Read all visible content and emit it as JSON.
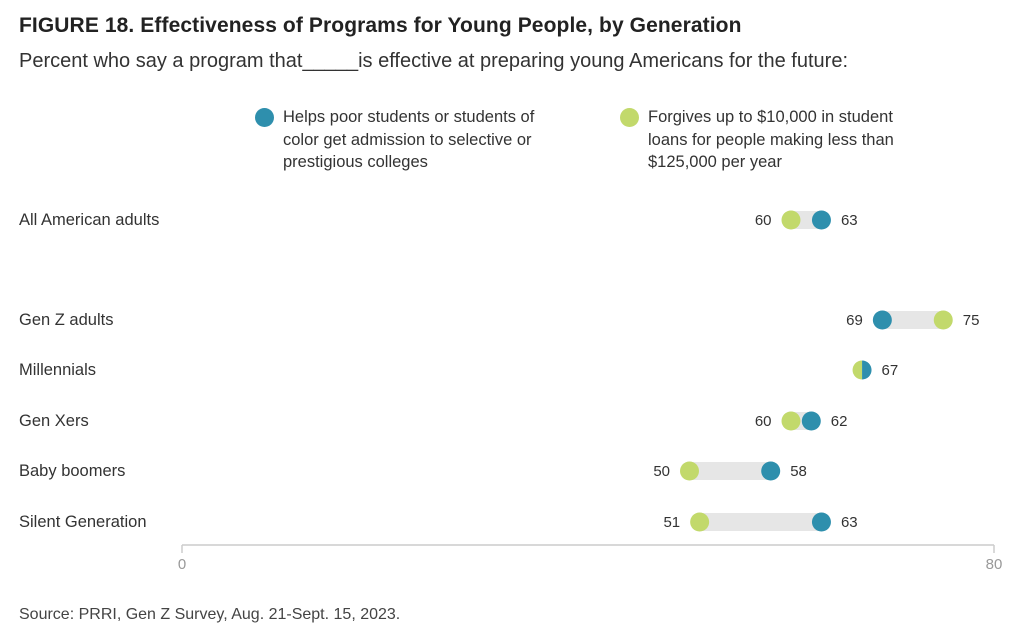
{
  "title": "FIGURE 18. Effectiveness of Programs for Young People, by Generation",
  "subtitle": "Percent who say a program that_____is effective at preparing young Americans for the future:",
  "source": "Source: PRRI, Gen Z Survey, Aug. 21-Sept. 15, 2023.",
  "colors": {
    "series_blue": "#2e8fad",
    "series_green": "#c2d96b",
    "connector": "#e6e6e6",
    "axis": "#cccccc"
  },
  "legend": {
    "position": "top",
    "items": [
      {
        "color": "#2e8fad",
        "label": "Helps poor students or students of\ncolor get admission to selective or\nprestigious colleges"
      },
      {
        "color": "#c2d96b",
        "label": "Forgives up to $10,000 in student\nloans for people making less than\n$125,000 per year"
      }
    ]
  },
  "chart_data": {
    "type": "scatter",
    "subtype": "dumbbell",
    "xlim": [
      0,
      80
    ],
    "x_ticks": [
      "0",
      "80"
    ],
    "grid": false,
    "categories": [
      "All American adults",
      "Gen Z adults",
      "Millennials",
      "Gen Xers",
      "Baby boomers",
      "Silent Generation"
    ],
    "series": [
      {
        "name": "Helps poor students or students of color get admission to selective or prestigious colleges",
        "color": "#2e8fad",
        "values": [
          63,
          69,
          67,
          62,
          58,
          63
        ]
      },
      {
        "name": "Forgives up to $10,000 in student loans for people making less than $125,000 per year",
        "color": "#c2d96b",
        "values": [
          60,
          75,
          67,
          60,
          50,
          51
        ]
      }
    ]
  }
}
